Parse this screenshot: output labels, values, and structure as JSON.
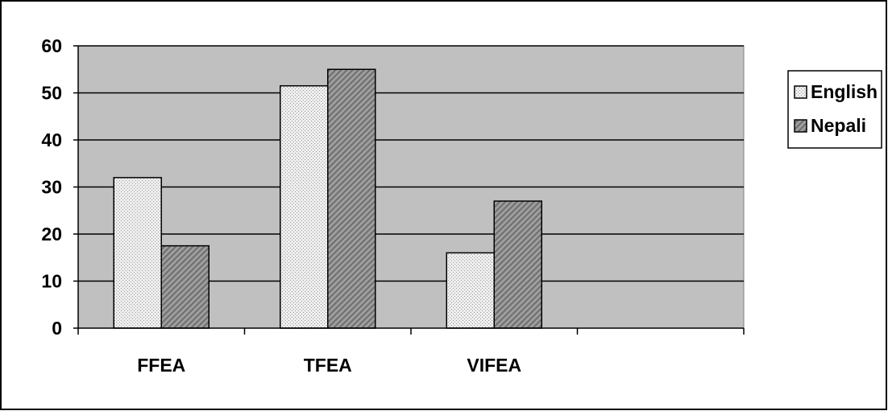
{
  "chart_data": {
    "type": "bar",
    "title": "",
    "xlabel": "",
    "ylabel": "",
    "categories": [
      "FFEA",
      "TFEA",
      "VIFEA",
      ""
    ],
    "series": [
      {
        "name": "English",
        "values": [
          32,
          51.5,
          16,
          null
        ]
      },
      {
        "name": "Nepali",
        "values": [
          17.5,
          55,
          27,
          null
        ]
      }
    ],
    "ylim": [
      0,
      60
    ],
    "yticks": [
      "0",
      "10",
      "20",
      "30",
      "40",
      "50",
      "60"
    ],
    "grid": true,
    "legend_position": "right",
    "colors": {
      "plot_background": "#c0c0c0",
      "english": "#e6e6e6",
      "nepali": "#8c8c8c",
      "outline": "#000000"
    }
  }
}
